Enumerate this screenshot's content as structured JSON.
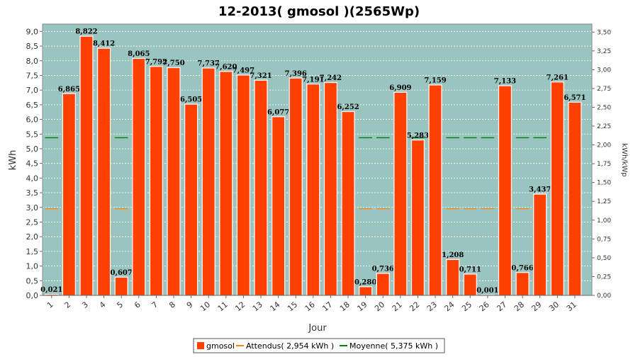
{
  "chart_data": {
    "type": "bar",
    "title": "12-2013( gmosol )(2565Wp)",
    "xlabel": "Jour",
    "ylabel": "kWh",
    "y2label": "kWh/kWp",
    "ylim": [
      0,
      9.25
    ],
    "y2lim": [
      0,
      3.6062
    ],
    "grid": true,
    "categories": [
      "1",
      "2",
      "3",
      "4",
      "5",
      "6",
      "7",
      "8",
      "9",
      "10",
      "11",
      "12",
      "13",
      "14",
      "15",
      "16",
      "17",
      "18",
      "19",
      "20",
      "21",
      "22",
      "23",
      "24",
      "25",
      "26",
      "27",
      "28",
      "29",
      "30",
      "31"
    ],
    "y_ticks": [
      "0,0",
      "0,5",
      "1,0",
      "1,5",
      "2,0",
      "2,5",
      "3,0",
      "3,5",
      "4,0",
      "4,5",
      "5,0",
      "5,5",
      "6,0",
      "6,5",
      "7,0",
      "7,5",
      "8,0",
      "8,5",
      "9,0"
    ],
    "y2_ticks": [
      "0,00",
      "0,25",
      "0,50",
      "0,75",
      "1,00",
      "1,25",
      "1,50",
      "1,75",
      "2,00",
      "2,25",
      "2,50",
      "2,75",
      "3,00",
      "3,25",
      "3,50"
    ],
    "series": [
      {
        "name": "gmosol",
        "color": "#ff4000",
        "values": [
          0.021,
          6.865,
          8.822,
          8.412,
          0.607,
          8.065,
          7.792,
          7.75,
          6.505,
          7.737,
          7.62,
          7.497,
          7.321,
          6.077,
          7.396,
          7.191,
          7.242,
          6.252,
          0.28,
          0.736,
          6.909,
          5.283,
          7.159,
          1.208,
          0.711,
          0.001,
          7.133,
          0.766,
          3.437,
          7.261,
          6.571
        ],
        "labels": [
          "0,021",
          "6,865",
          "8,822",
          "8,412",
          "0,607",
          "8,065",
          "7,792",
          "7,750",
          "6,505",
          "7,737",
          "7,620",
          "7,497",
          "7,321",
          "6,077",
          "7,396",
          "7,191",
          "7,242",
          "6,252",
          "0,280",
          "0,736",
          "6,909",
          "5,283",
          "7,159",
          "1,208",
          "0,711",
          "0,001",
          "7,133",
          "0,766",
          "3,437",
          "7,261",
          "6,571"
        ]
      }
    ],
    "reference_lines": [
      {
        "name": "Attendus( 2,954 kWh )",
        "value": 2.954,
        "color": "#ff8c00",
        "style": "dashed"
      },
      {
        "name": "Moyenne( 5,375 kWh )",
        "value": 5.375,
        "color": "#008000",
        "style": "dashed"
      }
    ],
    "legend_position": "bottom-center",
    "plot_background": "#99c4c0"
  }
}
